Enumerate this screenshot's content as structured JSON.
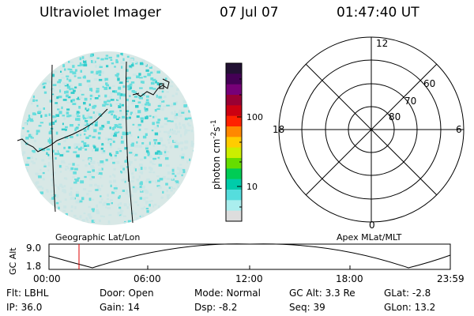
{
  "header": {
    "title": "Ultraviolet Imager",
    "date": "07 Jul 07",
    "time": "01:47:40 UT"
  },
  "geo_panel": {
    "label": "Geographic Lat/Lon"
  },
  "apex_panel": {
    "label": "Apex MLat/MLT",
    "mlt_labels": {
      "top": "12",
      "left": "18",
      "right": "6",
      "bottom": "0"
    },
    "lat_labels": [
      "60",
      "70",
      "80"
    ]
  },
  "colorbar": {
    "unit_label": "photon cm",
    "unit_exp1": "-2",
    "unit_s": "s",
    "unit_exp2": "-1",
    "ticks": [
      "100",
      "10"
    ],
    "colors": [
      "#221133",
      "#440055",
      "#770077",
      "#990033",
      "#cc0011",
      "#ff2200",
      "#ff8800",
      "#ffcc00",
      "#ccee00",
      "#66dd00",
      "#00cc55",
      "#00ccaa",
      "#55dddd",
      "#aaeeee",
      "#dddddd"
    ]
  },
  "altitude_plot": {
    "ylabel": "GC Alt",
    "yticks": [
      "9.0",
      "1.8"
    ],
    "xticks": [
      "00:00",
      "06:00",
      "12:00",
      "18:00",
      "23:59"
    ]
  },
  "info": {
    "flt": "Flt: LBHL",
    "ip": "IP: 36.0",
    "door": "Door: Open",
    "gain": "Gain: 14",
    "mode": "Mode: Normal",
    "dsp": "Dsp:  -8.2",
    "gcalt": "GC Alt: 3.3 Re",
    "seq": "Seq: 39",
    "glat": "GLat:  -2.8",
    "glon": "GLon:  13.2"
  },
  "colors": {
    "aurora_main": "#66dddd",
    "aurora_bright": "#33cccc",
    "aurora_faint": "#cce6e6",
    "marker": "#dd0000"
  }
}
